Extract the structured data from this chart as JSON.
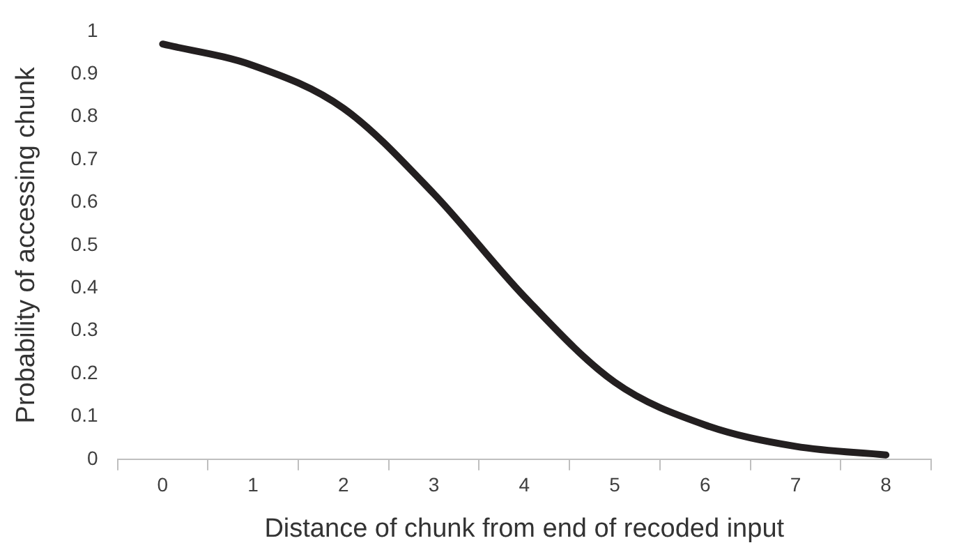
{
  "chart_data": {
    "type": "line",
    "xlabel": "Distance of chunk from end of recoded input",
    "ylabel": "Probability of accessing chunk",
    "categories": [
      "0",
      "1",
      "2",
      "3",
      "4",
      "5",
      "6",
      "7",
      "8"
    ],
    "series": [
      {
        "color": "#231f20",
        "values": [
          0.97,
          0.92,
          0.82,
          0.62,
          0.38,
          0.18,
          0.08,
          0.03,
          0.01
        ]
      }
    ],
    "ylim": [
      0,
      1
    ],
    "yticks": [
      0,
      0.1,
      0.2,
      0.3,
      0.4,
      0.5,
      0.6,
      0.7,
      0.8,
      0.9,
      1
    ],
    "grid": false,
    "legend": false,
    "marker": "none",
    "line_style": "solid"
  }
}
